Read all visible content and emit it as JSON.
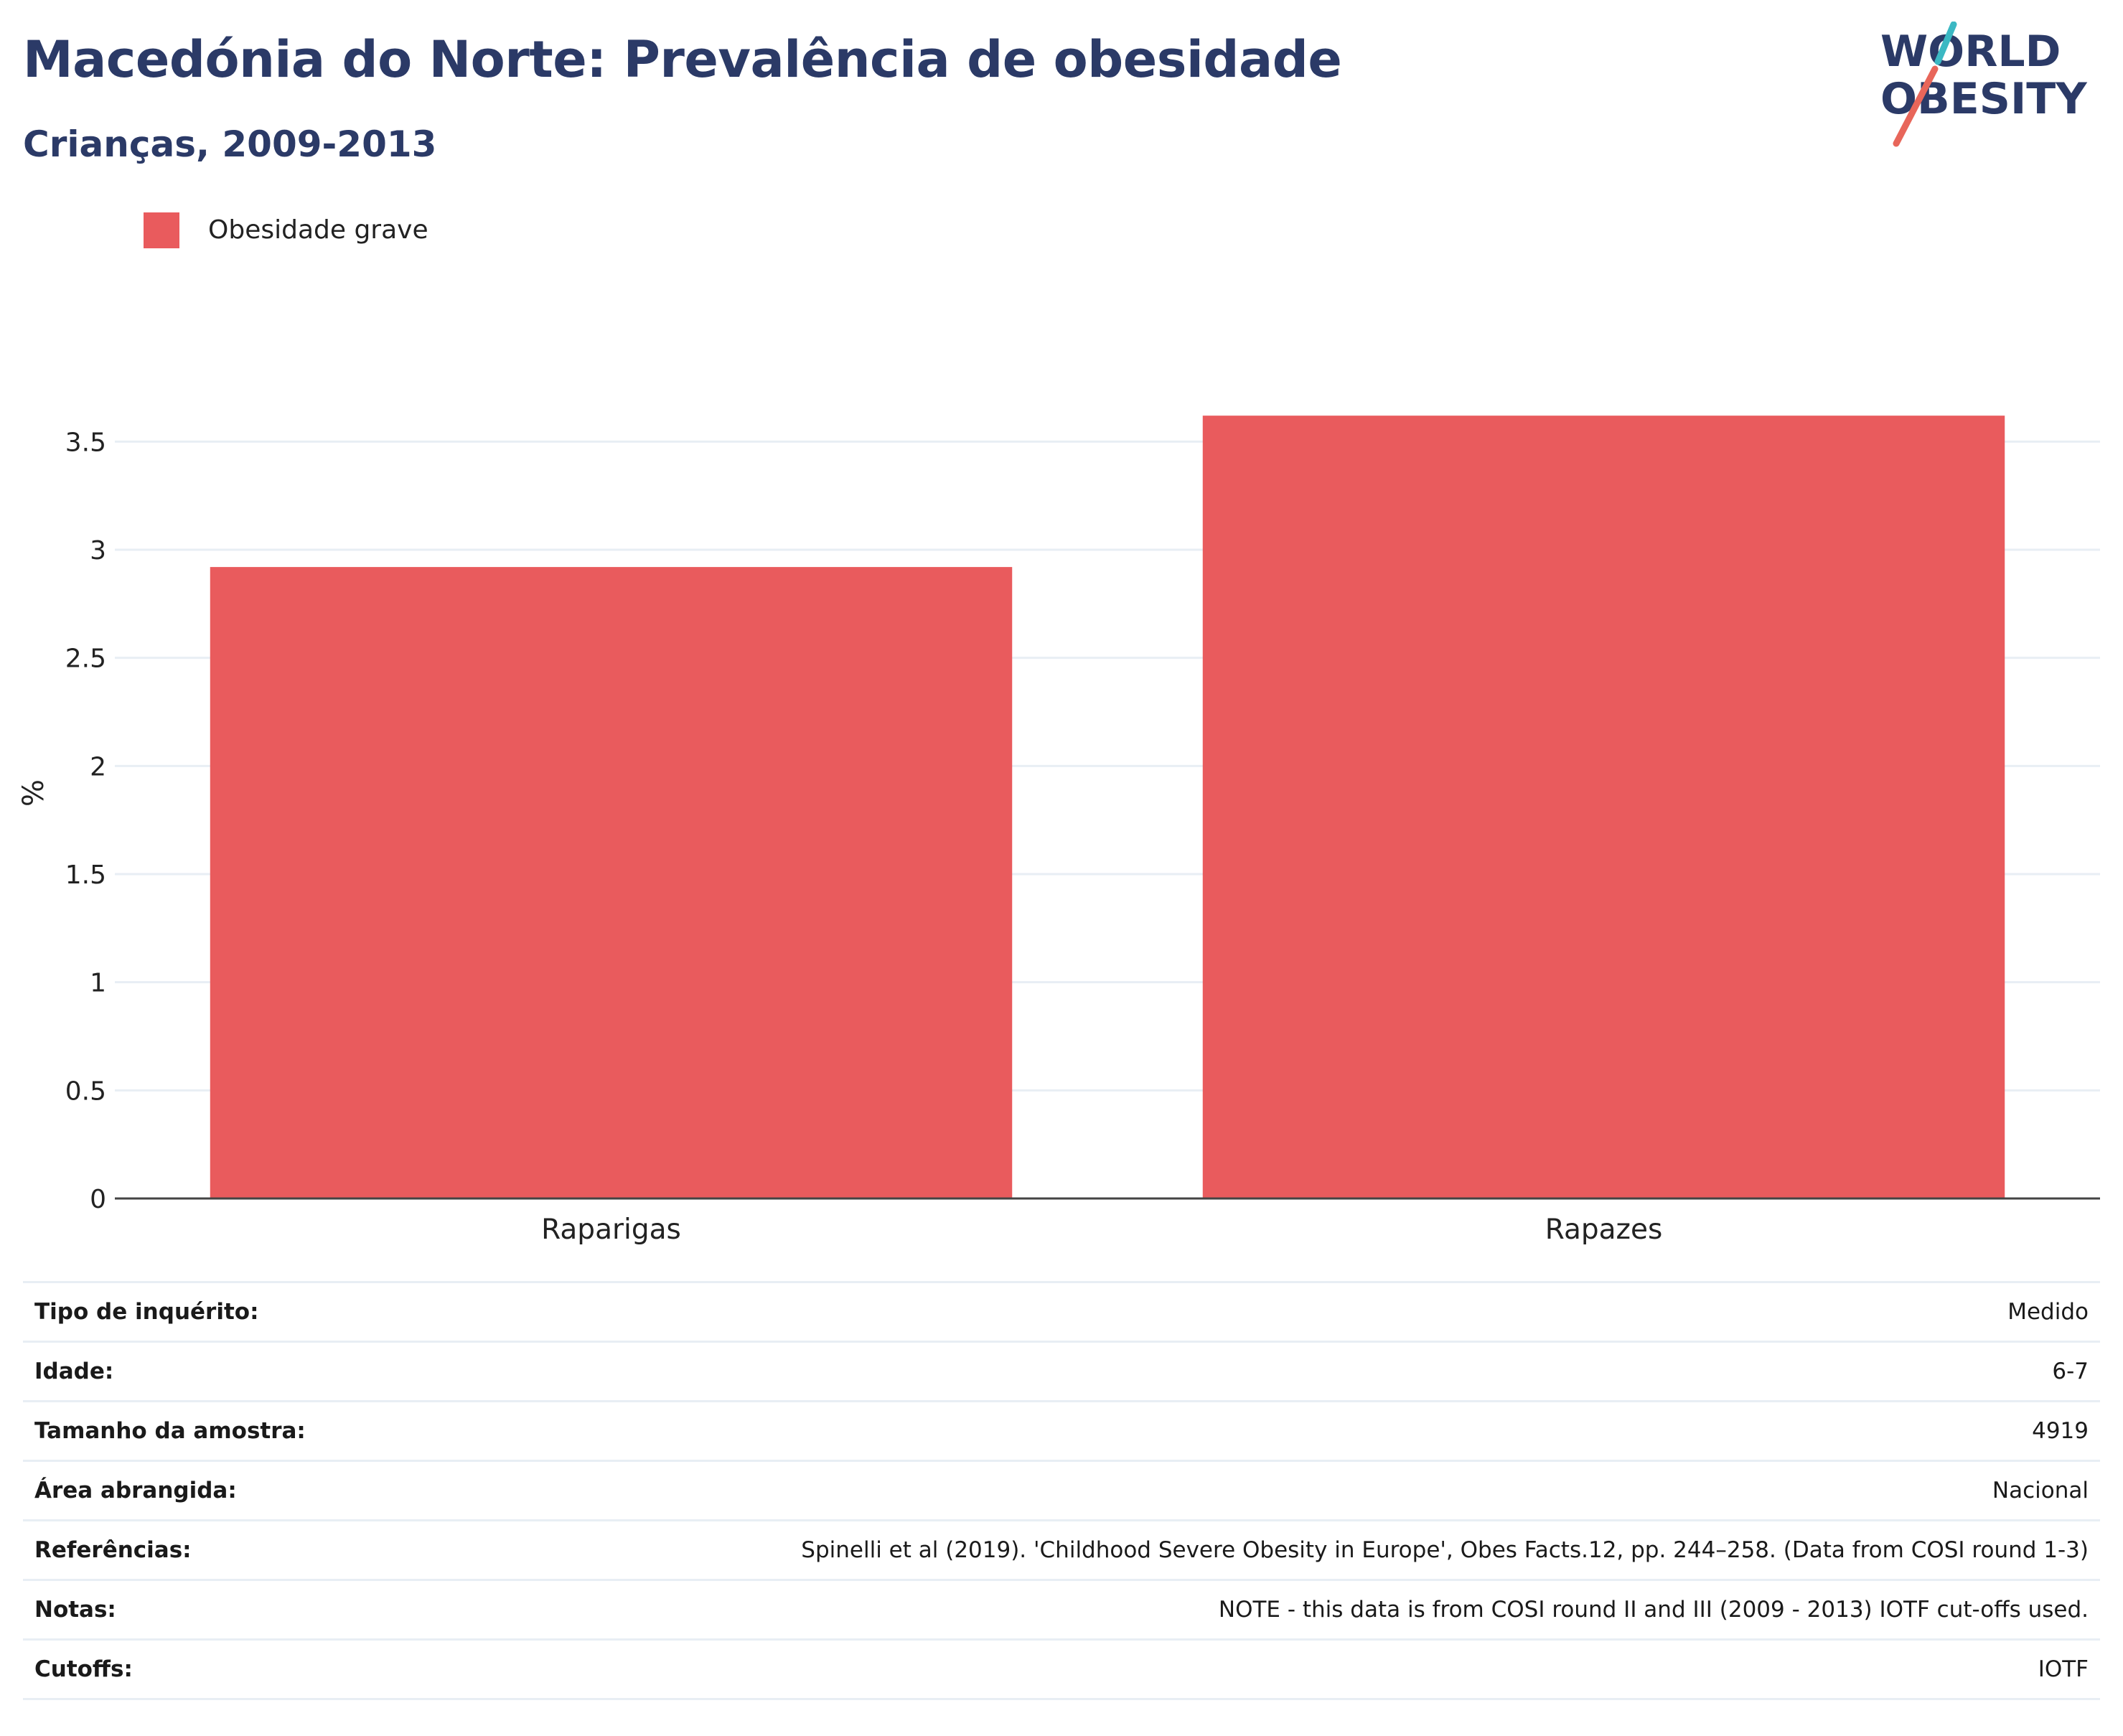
{
  "header": {
    "title": "Macedónia do Norte: Prevalência de obesidade",
    "subtitle": "Crianças, 2009-2013"
  },
  "logo": {
    "line1": "WORLD",
    "line2": "OBESITY",
    "colors": {
      "text": "#2b3a67",
      "slash_top": "#3bb8c3",
      "slash_bottom": "#e8665a"
    }
  },
  "legend": {
    "label": "Obesidade grave",
    "color": "#e95b5d"
  },
  "chart_data": {
    "type": "bar",
    "categories": [
      "Raparigas",
      "Rapazes"
    ],
    "series": [
      {
        "name": "Obesidade grave",
        "values": [
          2.92,
          3.62
        ],
        "color": "#e95b5d"
      }
    ],
    "ylabel": "%",
    "xlabel": "",
    "ylim": [
      0,
      3.75
    ],
    "yticks": [
      0,
      0.5,
      1,
      1.5,
      2,
      2.5,
      3,
      3.5
    ],
    "ytick_labels": [
      "0",
      "0.5",
      "1",
      "1.5",
      "2",
      "2.5",
      "3",
      "3.5"
    ],
    "grid": true,
    "legend_position": "top-left"
  },
  "info": {
    "rows": [
      {
        "key": "Tipo de inquérito:",
        "value": "Medido"
      },
      {
        "key": "Idade:",
        "value": "6-7"
      },
      {
        "key": "Tamanho da amostra:",
        "value": "4919"
      },
      {
        "key": "Área abrangida:",
        "value": "Nacional"
      },
      {
        "key": "Referências:",
        "value": "Spinelli et al (2019). 'Childhood Severe Obesity in Europe', Obes Facts.12, pp. 244–258. (Data from COSI round 1-3)"
      },
      {
        "key": "Notas:",
        "value": "NOTE - this data is from COSI round II and III (2009 - 2013) IOTF cut-offs used."
      },
      {
        "key": "Cutoffs:",
        "value": "IOTF"
      }
    ]
  }
}
